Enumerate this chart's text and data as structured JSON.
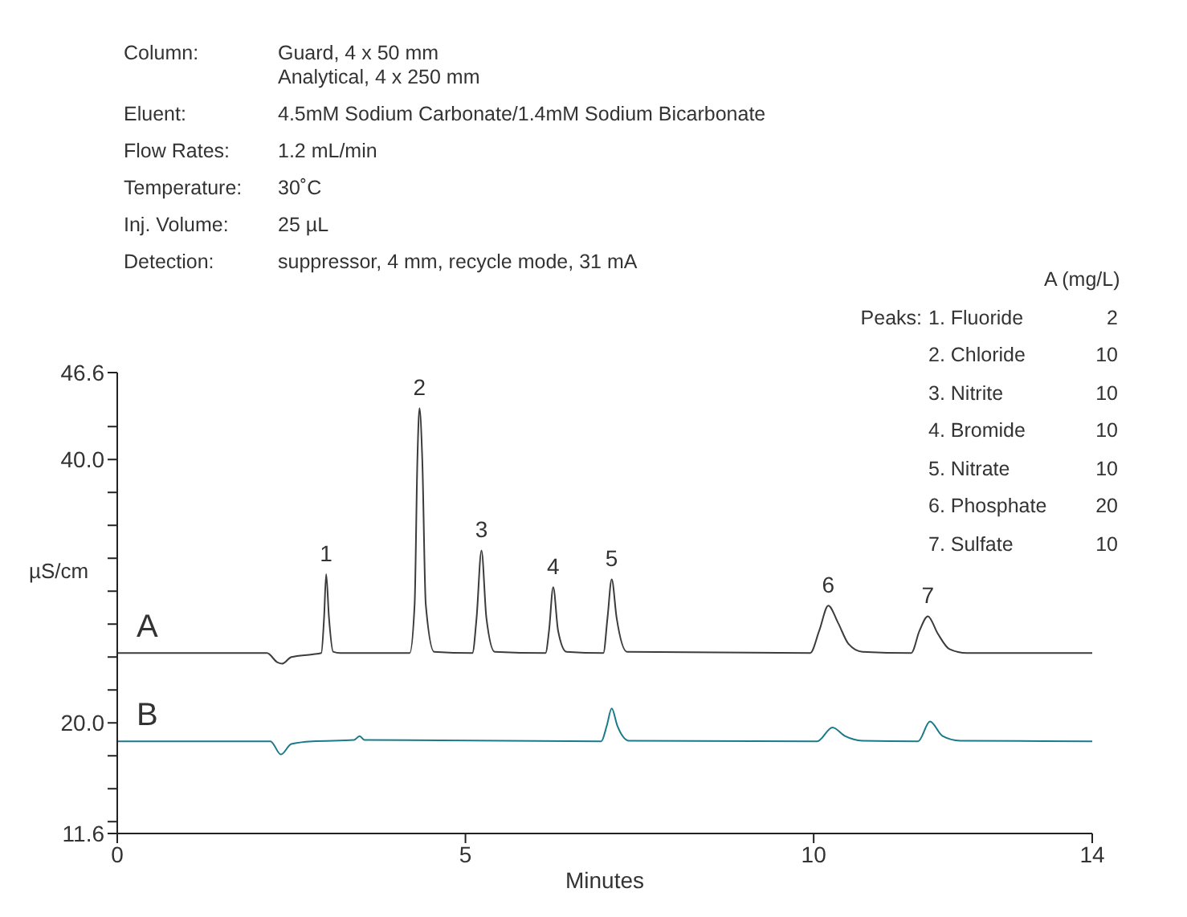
{
  "chart_data": {
    "type": "line",
    "xlabel": "Minutes",
    "ylabel": "µS/cm",
    "xlim": [
      0,
      14
    ],
    "xticks": [
      0,
      5,
      10,
      14
    ],
    "ylim": [
      11.6,
      46.6
    ],
    "yticks": [
      11.6,
      {
        "value": 12.5,
        "label": null
      },
      {
        "value": 15,
        "label": null
      },
      {
        "value": 17.5,
        "label": null
      },
      {
        "value": 20,
        "label": "20.0"
      },
      {
        "value": 22.5,
        "label": null
      },
      {
        "value": 25,
        "label": null
      },
      {
        "value": 27.5,
        "label": null
      },
      {
        "value": 30,
        "label": null
      },
      {
        "value": 32.5,
        "label": null
      },
      {
        "value": 35,
        "label": null
      },
      {
        "value": 37.5,
        "label": null
      },
      {
        "value": 40,
        "label": "40.0"
      },
      {
        "value": 42.5,
        "label": null
      },
      46.6
    ],
    "grid": false,
    "legend": false,
    "marker": "none",
    "line_style": "solid",
    "series": [
      {
        "name": "A",
        "color": "#3c3c3c",
        "x": [
          0,
          2.15,
          2.3,
          2.37,
          2.5,
          2.8,
          2.93,
          2.97,
          3.0,
          3.04,
          3.1,
          3.2,
          4.2,
          4.27,
          4.31,
          4.34,
          4.38,
          4.43,
          4.55,
          5.1,
          5.16,
          5.23,
          5.3,
          5.42,
          6.15,
          6.2,
          6.26,
          6.33,
          6.45,
          6.98,
          7.04,
          7.1,
          7.17,
          7.32,
          9.95,
          10.08,
          10.21,
          10.35,
          10.5,
          10.7,
          11.4,
          11.52,
          11.64,
          11.78,
          11.95,
          12.2,
          14
        ],
        "values": [
          25.3,
          25.3,
          24.6,
          24.5,
          25.0,
          25.2,
          25.3,
          28,
          31.3,
          28,
          25.4,
          25.3,
          25.3,
          29,
          40,
          43.9,
          40,
          29,
          25.4,
          25.3,
          28,
          33.1,
          28,
          25.4,
          25.3,
          27,
          30.3,
          27,
          25.4,
          25.3,
          28,
          30.9,
          28,
          25.4,
          25.3,
          27,
          28.9,
          27.6,
          26,
          25.4,
          25.3,
          27,
          28.1,
          26.8,
          25.6,
          25.3,
          25.3
        ]
      },
      {
        "name": "B",
        "color": "#1a7a8a",
        "x": [
          0,
          2.2,
          2.35,
          2.5,
          2.8,
          3.4,
          3.48,
          3.55,
          6.95,
          7.03,
          7.1,
          7.18,
          7.35,
          10.05,
          10.27,
          10.45,
          10.7,
          11.5,
          11.67,
          11.85,
          12.1,
          14
        ],
        "values": [
          18.6,
          18.6,
          17.6,
          18.4,
          18.6,
          18.7,
          19.0,
          18.7,
          18.6,
          19.8,
          21.1,
          19.8,
          18.65,
          18.6,
          19.65,
          19.0,
          18.65,
          18.6,
          20.1,
          19.0,
          18.65,
          18.6
        ]
      }
    ],
    "annotations": [
      "Column:",
      "Guard, 4 x 50 mm\nAnalytical, 4 x 250 mm",
      "Eluent:",
      "4.5mM Sodium Carbonate/1.4mM Sodium Bicarbonate",
      "Flow Rates:",
      "1.2 mL/min",
      "Temperature:",
      "30˚C",
      "Inj. Volume:",
      "25 µL",
      "Detection:",
      "suppressor, 4 mm, recycle mode, 31 mA",
      "A (mg/L)",
      "Peaks:",
      "1. Fluoride",
      "2",
      "2. Chloride",
      "10",
      "3. Nitrite",
      "10",
      "4. Bromide",
      "10",
      "5. Nitrate",
      "10",
      "6. Phosphate",
      "20",
      "7. Sulfate",
      "10",
      {
        "text": "1",
        "x": 3.0,
        "y": 31.3
      },
      {
        "text": "2",
        "x": 4.34,
        "y": 43.9
      },
      {
        "text": "3",
        "x": 5.23,
        "y": 33.1
      },
      {
        "text": "4",
        "x": 6.26,
        "y": 30.3
      },
      {
        "text": "5",
        "x": 7.1,
        "y": 30.9
      },
      {
        "text": "6",
        "x": 10.21,
        "y": 28.9
      },
      {
        "text": "7",
        "x": 11.64,
        "y": 28.1
      }
    ]
  }
}
